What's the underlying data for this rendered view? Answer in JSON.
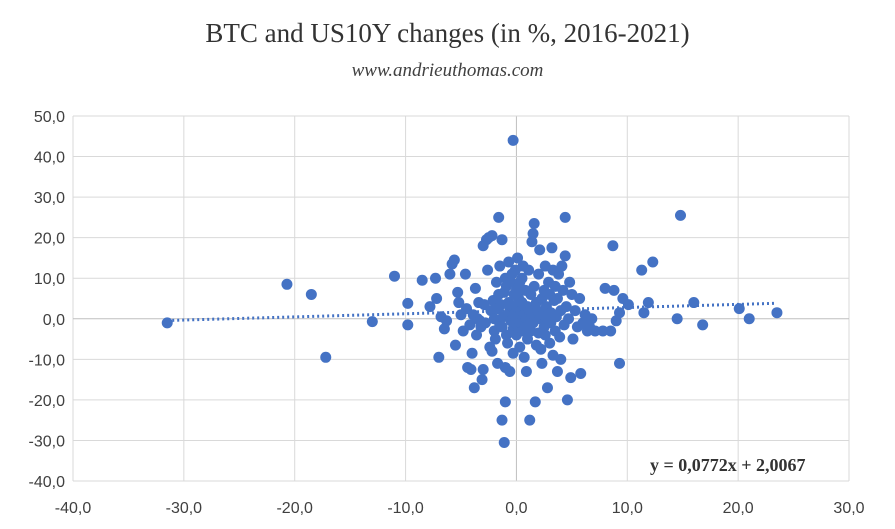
{
  "chart_data": {
    "type": "scatter",
    "title": "BTC and US10Y changes (in %, 2016-2021)",
    "subtitle": "www.andrieuthomas.com",
    "xlabel": "",
    "ylabel": "",
    "xlim": [
      -40,
      30
    ],
    "ylim": [
      -40,
      50
    ],
    "x_ticks": [
      "-40,0",
      "-30,0",
      "-20,0",
      "-10,0",
      "0,0",
      "10,0",
      "20,0",
      "30,0"
    ],
    "y_ticks": [
      "50,0",
      "40,0",
      "30,0",
      "20,0",
      "10,0",
      "0,0",
      "-10,0",
      "-20,0",
      "-30,0",
      "-40,0"
    ],
    "grid": true,
    "trendline": {
      "type": "linear",
      "slope": 0.0772,
      "intercept": 2.0067,
      "x_range": [
        -31.5,
        23.5
      ],
      "style": "dotted",
      "equation": "y = 0,0772x + 2,0067"
    },
    "marker_color": "#4472c4",
    "points": [
      [
        -31.5,
        -1
      ],
      [
        -20.7,
        8.5
      ],
      [
        -18.5,
        6
      ],
      [
        -17.2,
        -9.5
      ],
      [
        -13,
        -0.7
      ],
      [
        -11,
        10.5
      ],
      [
        -9.8,
        3.8
      ],
      [
        -9.8,
        -1.5
      ],
      [
        -8.5,
        9.5
      ],
      [
        -7.8,
        3
      ],
      [
        -7.3,
        10
      ],
      [
        -7.2,
        5
      ],
      [
        -7,
        -9.5
      ],
      [
        -6.8,
        0.5
      ],
      [
        -6.5,
        -2.5
      ],
      [
        -6.3,
        -0.5
      ],
      [
        -6,
        11
      ],
      [
        -5.8,
        13.5
      ],
      [
        -5.6,
        14.5
      ],
      [
        -5.5,
        -6.5
      ],
      [
        -5.3,
        6.5
      ],
      [
        -5.2,
        4
      ],
      [
        -5,
        1
      ],
      [
        -4.8,
        -3
      ],
      [
        -4.6,
        11
      ],
      [
        -4.5,
        2.5
      ],
      [
        -4.4,
        -12
      ],
      [
        -4.2,
        -1.5
      ],
      [
        -4.1,
        -12.5
      ],
      [
        -4,
        -8.5
      ],
      [
        -3.9,
        1
      ],
      [
        -3.7,
        7.5
      ],
      [
        -3.8,
        -17
      ],
      [
        -3.6,
        -4
      ],
      [
        -3.5,
        0
      ],
      [
        -3.4,
        4
      ],
      [
        -3.3,
        -0.5
      ],
      [
        -3.2,
        -2
      ],
      [
        -3.1,
        -15
      ],
      [
        -3,
        -12.5
      ],
      [
        -3,
        18
      ],
      [
        -2.9,
        3.5
      ],
      [
        -2.8,
        -1
      ],
      [
        -2.7,
        19.5
      ],
      [
        -2.6,
        12
      ],
      [
        -2.5,
        20
      ],
      [
        -2.4,
        -7
      ],
      [
        -2.3,
        2
      ],
      [
        -2.2,
        20.5
      ],
      [
        -2.2,
        -8
      ],
      [
        -2.1,
        4.5
      ],
      [
        -2,
        0
      ],
      [
        -2,
        -3
      ],
      [
        -1.9,
        -5
      ],
      [
        -1.8,
        9
      ],
      [
        -1.7,
        2.5
      ],
      [
        -1.7,
        -11
      ],
      [
        -1.6,
        6
      ],
      [
        -1.5,
        -1.5
      ],
      [
        -1.5,
        13
      ],
      [
        -1.4,
        3.5
      ],
      [
        -1.3,
        -2
      ],
      [
        -1.3,
        19.5
      ],
      [
        -1.2,
        0.5
      ],
      [
        -1.1,
        6.5
      ],
      [
        -1.1,
        -30.5
      ],
      [
        -1,
        -12
      ],
      [
        -1,
        10
      ],
      [
        -0.9,
        -4
      ],
      [
        -0.9,
        8
      ],
      [
        -0.8,
        1
      ],
      [
        -0.8,
        -6
      ],
      [
        -0.7,
        4
      ],
      [
        -0.7,
        14
      ],
      [
        -0.6,
        -13
      ],
      [
        -0.6,
        2
      ],
      [
        -0.5,
        -0.5
      ],
      [
        -0.5,
        9
      ],
      [
        -0.4,
        3
      ],
      [
        -0.4,
        11
      ],
      [
        -0.3,
        -2.5
      ],
      [
        -0.3,
        -8.5
      ],
      [
        -0.2,
        6
      ],
      [
        -0.2,
        1
      ],
      [
        -0.1,
        -1
      ],
      [
        -0.1,
        12
      ],
      [
        0,
        3
      ],
      [
        0,
        -4
      ],
      [
        0,
        7
      ],
      [
        0.1,
        0
      ],
      [
        0.1,
        15
      ],
      [
        0.2,
        -2
      ],
      [
        0.2,
        5
      ],
      [
        0.3,
        9
      ],
      [
        0.3,
        -7
      ],
      [
        0.4,
        2
      ],
      [
        0.4,
        -1
      ],
      [
        0.5,
        10
      ],
      [
        0.5,
        4
      ],
      [
        0.6,
        -3
      ],
      [
        0.6,
        13
      ],
      [
        0.7,
        1
      ],
      [
        0.7,
        -9.5
      ],
      [
        0.8,
        7
      ],
      [
        0.8,
        -2
      ],
      [
        0.9,
        0
      ],
      [
        0.9,
        -13
      ],
      [
        1,
        3
      ],
      [
        1,
        -5
      ],
      [
        1.1,
        12
      ],
      [
        1.1,
        -1.5
      ],
      [
        1.2,
        2
      ],
      [
        1.2,
        -25
      ],
      [
        1.3,
        6
      ],
      [
        1.3,
        -3
      ],
      [
        1.4,
        0.5
      ],
      [
        1.4,
        19
      ],
      [
        1.5,
        21
      ],
      [
        1.5,
        -1
      ],
      [
        1.6,
        8
      ],
      [
        1.6,
        23.5
      ],
      [
        1.7,
        -20.5
      ],
      [
        1.8,
        4
      ],
      [
        1.8,
        -6.5
      ],
      [
        1.9,
        2
      ],
      [
        2,
        11
      ],
      [
        2,
        -3.5
      ],
      [
        2.1,
        0
      ],
      [
        2.1,
        17
      ],
      [
        2.2,
        -7.5
      ],
      [
        2.3,
        5
      ],
      [
        2.3,
        -11
      ],
      [
        2.4,
        1
      ],
      [
        2.5,
        7
      ],
      [
        2.5,
        -2
      ],
      [
        2.6,
        13
      ],
      [
        2.6,
        -4
      ],
      [
        2.7,
        3
      ],
      [
        2.8,
        -17
      ],
      [
        2.8,
        0
      ],
      [
        2.9,
        9
      ],
      [
        3,
        6
      ],
      [
        3,
        -6
      ],
      [
        3.1,
        1.5
      ],
      [
        3.1,
        -1
      ],
      [
        3.2,
        17.5
      ],
      [
        3.3,
        12
      ],
      [
        3.3,
        -9
      ],
      [
        3.4,
        4.5
      ],
      [
        3.5,
        -3
      ],
      [
        3.5,
        8
      ],
      [
        3.6,
        0.5
      ],
      [
        3.7,
        -13
      ],
      [
        3.7,
        5
      ],
      [
        3.8,
        11
      ],
      [
        3.9,
        -4.5
      ],
      [
        4,
        2
      ],
      [
        4,
        -10
      ],
      [
        4.1,
        13
      ],
      [
        4.2,
        7
      ],
      [
        4.3,
        -1.5
      ],
      [
        4.4,
        15.5
      ],
      [
        4.4,
        25
      ],
      [
        4.5,
        3
      ],
      [
        4.6,
        -20
      ],
      [
        4.7,
        0
      ],
      [
        4.8,
        9
      ],
      [
        4.9,
        -14.5
      ],
      [
        5,
        6
      ],
      [
        5.1,
        -5
      ],
      [
        5.3,
        2
      ],
      [
        5.5,
        -2
      ],
      [
        5.7,
        5
      ],
      [
        5.8,
        -13.5
      ],
      [
        6,
        -1
      ],
      [
        6.2,
        1
      ],
      [
        6.4,
        -3
      ],
      [
        6.6,
        -2
      ],
      [
        6.8,
        0
      ],
      [
        7.1,
        -3
      ],
      [
        7.8,
        -3
      ],
      [
        8,
        7.5
      ],
      [
        8.5,
        -3
      ],
      [
        8.7,
        18
      ],
      [
        8.8,
        7
      ],
      [
        9,
        -0.5
      ],
      [
        9.3,
        1.5
      ],
      [
        9.3,
        -11
      ],
      [
        9.6,
        5
      ],
      [
        10.1,
        3.5
      ],
      [
        11.3,
        12
      ],
      [
        11.5,
        1.5
      ],
      [
        11.9,
        4
      ],
      [
        12.3,
        14
      ],
      [
        14.5,
        0
      ],
      [
        14.8,
        25.5
      ],
      [
        16,
        4
      ],
      [
        16.8,
        -1.5
      ],
      [
        20.1,
        2.5
      ],
      [
        21,
        0
      ],
      [
        23.5,
        1.5
      ],
      [
        -0.3,
        44
      ],
      [
        -1.6,
        25
      ],
      [
        -1.3,
        -25
      ],
      [
        -1,
        -20.5
      ]
    ]
  }
}
